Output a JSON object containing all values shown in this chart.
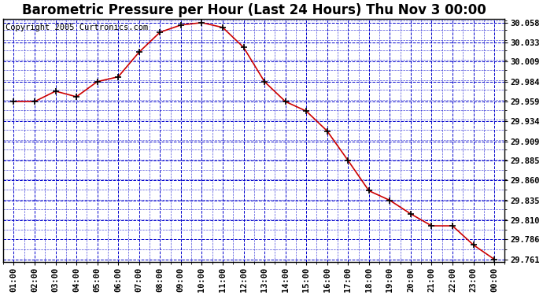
{
  "title": "Barometric Pressure per Hour (Last 24 Hours) Thu Nov 3 00:00",
  "copyright": "Copyright 2005 Curtronics.com",
  "x_labels": [
    "01:00",
    "02:00",
    "03:00",
    "04:00",
    "05:00",
    "06:00",
    "07:00",
    "08:00",
    "09:00",
    "10:00",
    "11:00",
    "12:00",
    "13:00",
    "14:00",
    "15:00",
    "16:00",
    "17:00",
    "18:00",
    "19:00",
    "20:00",
    "21:00",
    "22:00",
    "23:00",
    "00:00"
  ],
  "y_values": [
    29.959,
    29.959,
    29.972,
    29.965,
    29.984,
    29.99,
    30.021,
    30.046,
    30.055,
    30.058,
    30.052,
    30.027,
    29.984,
    29.959,
    29.947,
    29.922,
    29.885,
    29.847,
    29.835,
    29.818,
    29.803,
    29.803,
    29.779,
    29.761
  ],
  "ylim_min": 29.758,
  "ylim_max": 30.063,
  "yticks": [
    29.761,
    29.786,
    29.81,
    29.835,
    29.86,
    29.885,
    29.909,
    29.934,
    29.959,
    29.984,
    30.009,
    30.033,
    30.058
  ],
  "line_color": "#cc0000",
  "marker_color": "#000000",
  "bg_color": "#ffffff",
  "grid_color": "#0000cc",
  "border_color": "#000000",
  "fig_bg": "#ffffff",
  "title_fontsize": 12,
  "copyright_fontsize": 7.5,
  "tick_fontsize": 7.5
}
